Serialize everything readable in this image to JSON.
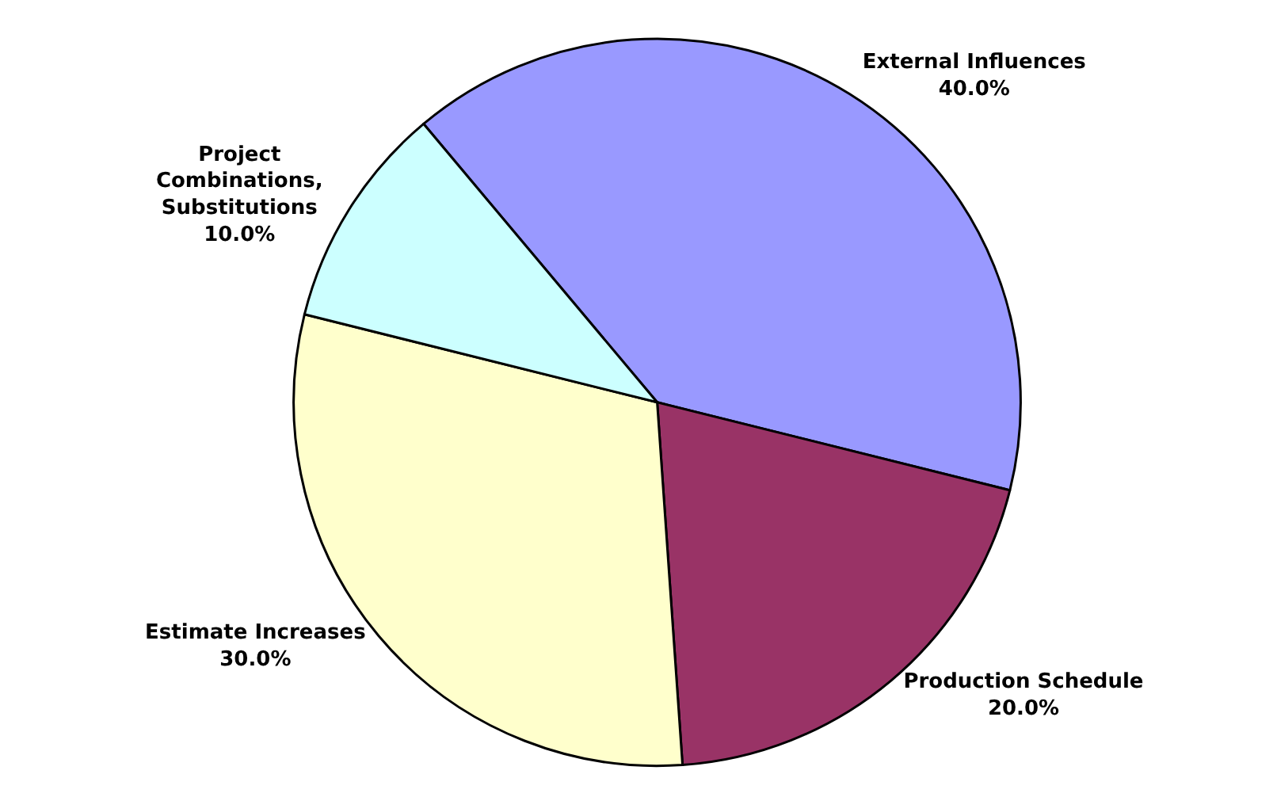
{
  "chart_data": {
    "type": "pie",
    "categories": [
      "External Influences",
      "Production Schedule",
      "Estimate Increases",
      "Project Combinations, Substitutions"
    ],
    "values": [
      40,
      20,
      30,
      10
    ],
    "value_labels": [
      "40.0%",
      "20.0%",
      "30.0%",
      "10.0%"
    ],
    "colors": [
      "#9999ff",
      "#993366",
      "#ffffcc",
      "#ccffff"
    ],
    "legend": false
  }
}
